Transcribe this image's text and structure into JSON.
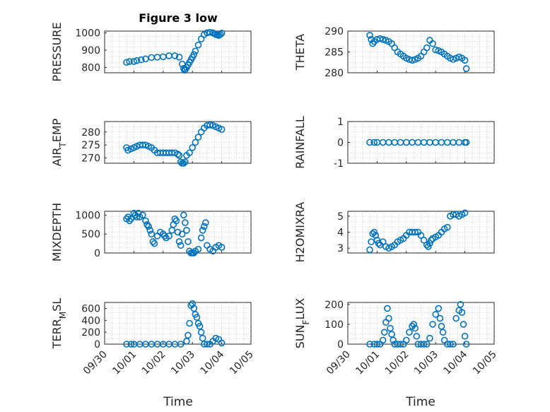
{
  "figure": {
    "title": "Figure 3 low",
    "marker_color": "#0072BD",
    "background": "#ffffff",
    "grid": "dotted-minor"
  },
  "chart_data": [
    {
      "type": "scatter",
      "ylabel": "PRESSURE",
      "ylim": [
        770,
        1010
      ],
      "yticks": [
        800,
        900,
        1000
      ],
      "xlim": [
        0,
        5
      ],
      "xticks": [
        "09/30",
        "10/01",
        "10/02",
        "10/03",
        "10/04",
        "10/05"
      ],
      "series": [
        {
          "x": [
            0.75,
            0.85,
            1,
            1.1,
            1.25,
            1.4,
            1.6,
            1.8,
            2,
            2.2,
            2.4,
            2.55,
            2.65,
            2.7,
            2.73,
            2.76,
            2.8,
            2.85,
            2.9,
            2.95,
            3,
            3.05,
            3.1,
            3.2,
            3.3,
            3.4,
            3.5,
            3.6,
            3.7,
            3.75,
            3.8,
            3.85,
            3.9,
            3.95,
            4
          ],
          "y": [
            830,
            835,
            835,
            840,
            845,
            850,
            858,
            860,
            862,
            868,
            868,
            860,
            820,
            795,
            785,
            790,
            800,
            815,
            830,
            845,
            860,
            875,
            895,
            930,
            965,
            990,
            1000,
            1003,
            1000,
            995,
            990,
            988,
            985,
            990,
            998
          ]
        }
      ]
    },
    {
      "type": "scatter",
      "ylabel": "THETA",
      "ylim": [
        280,
        290
      ],
      "yticks": [
        280,
        285,
        290
      ],
      "xlim": [
        0,
        5
      ],
      "xticks": [
        "09/30",
        "10/01",
        "10/02",
        "10/03",
        "10/04",
        "10/05"
      ],
      "series": [
        {
          "x": [
            0.75,
            0.8,
            0.85,
            0.9,
            1,
            1.1,
            1.2,
            1.3,
            1.4,
            1.5,
            1.6,
            1.7,
            1.8,
            1.9,
            2,
            2.1,
            2.2,
            2.3,
            2.4,
            2.5,
            2.6,
            2.7,
            2.8,
            2.9,
            3,
            3.1,
            3.2,
            3.3,
            3.4,
            3.5,
            3.6,
            3.7,
            3.8,
            3.9,
            4,
            4.05
          ],
          "y": [
            289,
            288,
            287,
            287.5,
            288,
            288.2,
            288,
            287.8,
            287.5,
            287,
            286,
            285,
            284.5,
            284,
            283.5,
            283.2,
            283,
            283.2,
            283.5,
            284,
            285,
            286,
            287.8,
            287,
            285.5,
            285.3,
            285,
            284.5,
            284,
            283.5,
            283.2,
            283.5,
            283.8,
            283.5,
            283,
            281
          ]
        }
      ]
    },
    {
      "type": "scatter",
      "ylabel": "AIR_TEMP",
      "ylim": [
        268,
        284
      ],
      "yticks": [
        270,
        275,
        280
      ],
      "xlim": [
        0,
        5
      ],
      "xticks": [
        "09/30",
        "10/01",
        "10/02",
        "10/03",
        "10/04",
        "10/05"
      ],
      "series": [
        {
          "x": [
            0.75,
            0.8,
            0.9,
            1,
            1.1,
            1.2,
            1.3,
            1.4,
            1.5,
            1.6,
            1.7,
            1.8,
            1.9,
            2,
            2.1,
            2.2,
            2.3,
            2.4,
            2.5,
            2.55,
            2.6,
            2.65,
            2.7,
            2.75,
            2.8,
            2.9,
            3,
            3.1,
            3.2,
            3.3,
            3.4,
            3.5,
            3.6,
            3.7,
            3.8,
            3.9,
            4
          ],
          "y": [
            274,
            273,
            273.5,
            274,
            274.5,
            275,
            275,
            275,
            274.5,
            274,
            273,
            272,
            272,
            272,
            272,
            272,
            272,
            272,
            271.5,
            271,
            268.5,
            268,
            268,
            268.5,
            271,
            272,
            274,
            276,
            278,
            280,
            281.5,
            282.5,
            282.7,
            282.5,
            282,
            281.5,
            281
          ]
        }
      ]
    },
    {
      "type": "scatter",
      "ylabel": "RAINFALL",
      "ylim": [
        -1,
        1
      ],
      "yticks": [
        -1,
        0,
        1
      ],
      "xlim": [
        0,
        5
      ],
      "xticks": [
        "09/30",
        "10/01",
        "10/02",
        "10/03",
        "10/04",
        "10/05"
      ],
      "series": [
        {
          "x": [
            0.75,
            0.9,
            1,
            1.2,
            1.4,
            1.6,
            1.8,
            2,
            2.2,
            2.4,
            2.6,
            2.8,
            3,
            3.2,
            3.4,
            3.6,
            3.8,
            4,
            4.05
          ],
          "y": [
            0,
            0,
            0,
            0,
            0,
            0,
            0,
            0,
            0,
            0,
            0,
            0,
            0,
            0,
            0,
            0,
            0,
            0,
            0
          ]
        }
      ]
    },
    {
      "type": "scatter",
      "ylabel": "MIXDEPTH",
      "ylim": [
        0,
        1100
      ],
      "yticks": [
        0,
        500,
        1000
      ],
      "xlim": [
        0,
        5
      ],
      "xticks": [
        "09/30",
        "10/01",
        "10/02",
        "10/03",
        "10/04",
        "10/05"
      ],
      "series": [
        {
          "x": [
            0.75,
            0.8,
            0.85,
            0.9,
            1,
            1.05,
            1.1,
            1.15,
            1.2,
            1.3,
            1.4,
            1.45,
            1.5,
            1.55,
            1.6,
            1.65,
            1.7,
            1.8,
            1.9,
            2,
            2.05,
            2.1,
            2.2,
            2.3,
            2.35,
            2.4,
            2.45,
            2.5,
            2.55,
            2.6,
            2.65,
            2.7,
            2.75,
            2.8,
            2.85,
            2.9,
            2.95,
            3,
            3.05,
            3.1,
            3.2,
            3.3,
            3.35,
            3.4,
            3.45,
            3.5,
            3.6,
            3.7,
            3.8,
            3.9,
            4
          ],
          "y": [
            900,
            950,
            850,
            900,
            1050,
            1000,
            950,
            1050,
            950,
            1000,
            850,
            750,
            700,
            600,
            500,
            300,
            250,
            450,
            550,
            500,
            450,
            400,
            450,
            600,
            750,
            900,
            850,
            550,
            300,
            200,
            500,
            1000,
            800,
            600,
            300,
            50,
            0,
            0,
            0,
            50,
            100,
            400,
            600,
            700,
            800,
            200,
            100,
            50,
            150,
            200,
            150
          ]
        }
      ]
    },
    {
      "type": "scatter",
      "ylabel": "H2OMIXRA",
      "ylim": [
        2.7,
        5.3
      ],
      "yticks": [
        3,
        4,
        5
      ],
      "xlim": [
        0,
        5
      ],
      "xticks": [
        "09/30",
        "10/01",
        "10/02",
        "10/03",
        "10/04",
        "10/05"
      ],
      "series": [
        {
          "x": [
            0.75,
            0.8,
            0.85,
            0.9,
            0.95,
            1,
            1.05,
            1.1,
            1.2,
            1.3,
            1.4,
            1.5,
            1.6,
            1.7,
            1.8,
            1.9,
            2,
            2.1,
            2.2,
            2.3,
            2.4,
            2.5,
            2.6,
            2.7,
            2.75,
            2.8,
            2.85,
            2.9,
            3,
            3.1,
            3.2,
            3.3,
            3.4,
            3.5,
            3.6,
            3.7,
            3.8,
            3.9,
            4
          ],
          "y": [
            2.9,
            3.4,
            3.9,
            4,
            3.8,
            3.5,
            3.3,
            3.2,
            3.4,
            3.1,
            3.0,
            3.1,
            3.2,
            3.4,
            3.5,
            3.6,
            3.8,
            4.0,
            4.0,
            4.0,
            4.0,
            3.8,
            3.5,
            3.2,
            3.1,
            3.3,
            3.5,
            3.6,
            3.7,
            3.8,
            4.0,
            4.2,
            4.3,
            5.0,
            5.1,
            5.1,
            5.0,
            5.1,
            5.2
          ]
        }
      ]
    },
    {
      "type": "scatter",
      "ylabel": "TERR_MSL",
      "ylim": [
        0,
        700
      ],
      "yticks": [
        0,
        200,
        400,
        600
      ],
      "xlim": [
        0,
        5
      ],
      "xticks": [
        "09/30",
        "10/01",
        "10/02",
        "10/03",
        "10/04",
        "10/05"
      ],
      "series": [
        {
          "x": [
            0.75,
            0.9,
            1,
            1.2,
            1.4,
            1.6,
            1.8,
            2,
            2.2,
            2.4,
            2.6,
            2.8,
            2.85,
            2.9,
            2.95,
            3,
            3.05,
            3.1,
            3.15,
            3.2,
            3.25,
            3.3,
            3.35,
            3.4,
            3.5,
            3.6,
            3.7,
            3.8,
            3.9,
            4
          ],
          "y": [
            0,
            0,
            0,
            0,
            0,
            0,
            0,
            0,
            0,
            0,
            0,
            50,
            150,
            350,
            650,
            680,
            600,
            500,
            450,
            350,
            300,
            200,
            100,
            0,
            0,
            0,
            50,
            100,
            80,
            20
          ]
        }
      ]
    },
    {
      "type": "scatter",
      "ylabel": "SUN_FLUX",
      "ylim": [
        0,
        210
      ],
      "yticks": [
        0,
        100,
        200
      ],
      "xlim": [
        0,
        5
      ],
      "xticks": [
        "09/30",
        "10/01",
        "10/02",
        "10/03",
        "10/04",
        "10/05"
      ],
      "series": [
        {
          "x": [
            0.75,
            0.9,
            1,
            1.1,
            1.2,
            1.25,
            1.3,
            1.35,
            1.4,
            1.45,
            1.5,
            1.55,
            1.6,
            1.7,
            1.8,
            1.9,
            2,
            2.1,
            2.2,
            2.25,
            2.3,
            2.35,
            2.4,
            2.5,
            2.6,
            2.7,
            2.8,
            2.9,
            3,
            3.1,
            3.15,
            3.2,
            3.25,
            3.3,
            3.4,
            3.5,
            3.6,
            3.7,
            3.8,
            3.85,
            3.9,
            3.95,
            4,
            4.05
          ],
          "y": [
            0,
            0,
            0,
            0,
            20,
            60,
            110,
            180,
            130,
            80,
            50,
            20,
            0,
            0,
            0,
            0,
            20,
            60,
            90,
            100,
            80,
            40,
            0,
            0,
            0,
            0,
            30,
            100,
            150,
            180,
            130,
            90,
            60,
            20,
            0,
            0,
            0,
            130,
            170,
            200,
            160,
            100,
            40,
            0
          ]
        }
      ]
    }
  ]
}
